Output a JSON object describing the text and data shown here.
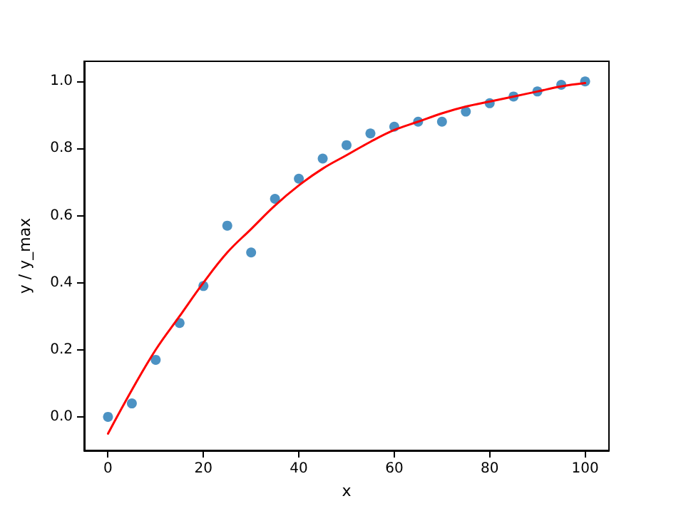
{
  "chart_data": {
    "type": "scatter",
    "xlabel": "x",
    "ylabel": "y / y_max",
    "xlim": [
      -5,
      105
    ],
    "ylim": [
      -0.1,
      1.06
    ],
    "xticks": [
      0,
      20,
      40,
      60,
      80,
      100
    ],
    "yticks": [
      {
        "value": 0,
        "label": "0.0"
      },
      {
        "value": 0.2,
        "label": "0.2"
      },
      {
        "value": 0.4,
        "label": "0.4"
      },
      {
        "value": 0.6,
        "label": "0.6"
      },
      {
        "value": 0.8,
        "label": "0.8"
      },
      {
        "value": 1,
        "label": "1.0"
      }
    ],
    "grid": false,
    "marker": "circle",
    "series": [
      {
        "color": "#1f77b4",
        "x": [
          0,
          5,
          10,
          15,
          20,
          25,
          30,
          35,
          40,
          45,
          50,
          55,
          60,
          65,
          70,
          75,
          80,
          85,
          90,
          95,
          100
        ],
        "values": [
          0.0,
          0.04,
          0.17,
          0.28,
          0.39,
          0.57,
          0.49,
          0.65,
          0.71,
          0.77,
          0.81,
          0.845,
          0.865,
          0.88,
          0.88,
          0.91,
          0.935,
          0.955,
          0.97,
          0.99,
          1.0
        ]
      },
      {
        "type": "line",
        "color": "#ff0000",
        "marker": "none",
        "line_style": "solid",
        "x": [
          0,
          5,
          10,
          15,
          20,
          25,
          30,
          35,
          40,
          45,
          50,
          55,
          60,
          65,
          70,
          75,
          80,
          85,
          90,
          95,
          100
        ],
        "values": [
          -0.05,
          0.08,
          0.2,
          0.3,
          0.4,
          0.49,
          0.56,
          0.63,
          0.69,
          0.74,
          0.78,
          0.82,
          0.855,
          0.88,
          0.905,
          0.925,
          0.94,
          0.955,
          0.97,
          0.985,
          0.995
        ]
      }
    ]
  }
}
